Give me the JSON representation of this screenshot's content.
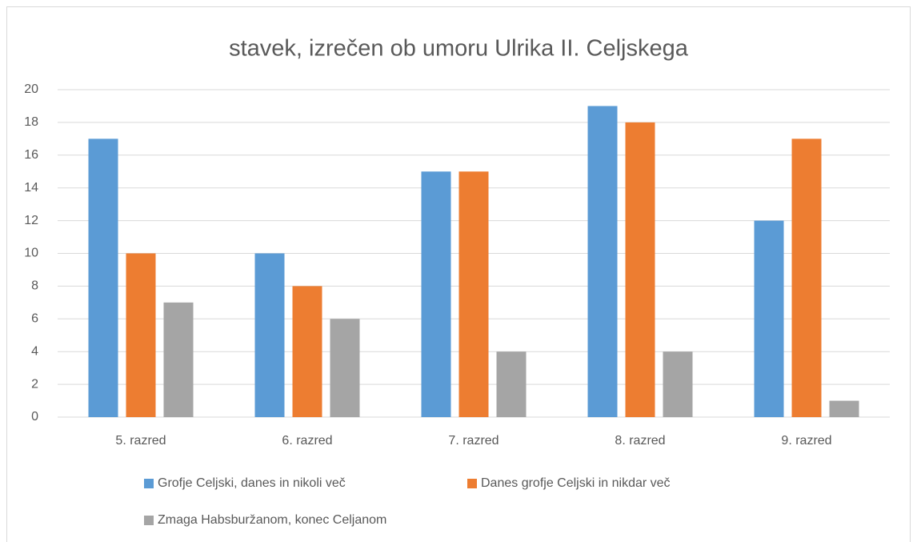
{
  "chart_data": {
    "type": "bar",
    "title": "stavek, izrečen ob umoru Ulrika II. Celjskega",
    "categories": [
      "5. razred",
      "6. razred",
      "7. razred",
      "8. razred",
      "9. razred"
    ],
    "series": [
      {
        "name": "Grofje Celjski, danes in nikoli več",
        "color": "#5b9bd5",
        "values": [
          17,
          10,
          15,
          19,
          12
        ]
      },
      {
        "name": "Danes grofje Celjski in nikdar več",
        "color": "#ed7d31",
        "values": [
          10,
          8,
          15,
          18,
          17
        ]
      },
      {
        "name": "Zmaga Habsburžanom, konec Celjanom",
        "color": "#a5a5a5",
        "values": [
          7,
          6,
          4,
          4,
          1
        ]
      }
    ],
    "ylim": [
      0,
      20
    ],
    "yticks": [
      0,
      2,
      4,
      6,
      8,
      10,
      12,
      14,
      16,
      18,
      20
    ],
    "grid": true,
    "legend": "bottom"
  }
}
